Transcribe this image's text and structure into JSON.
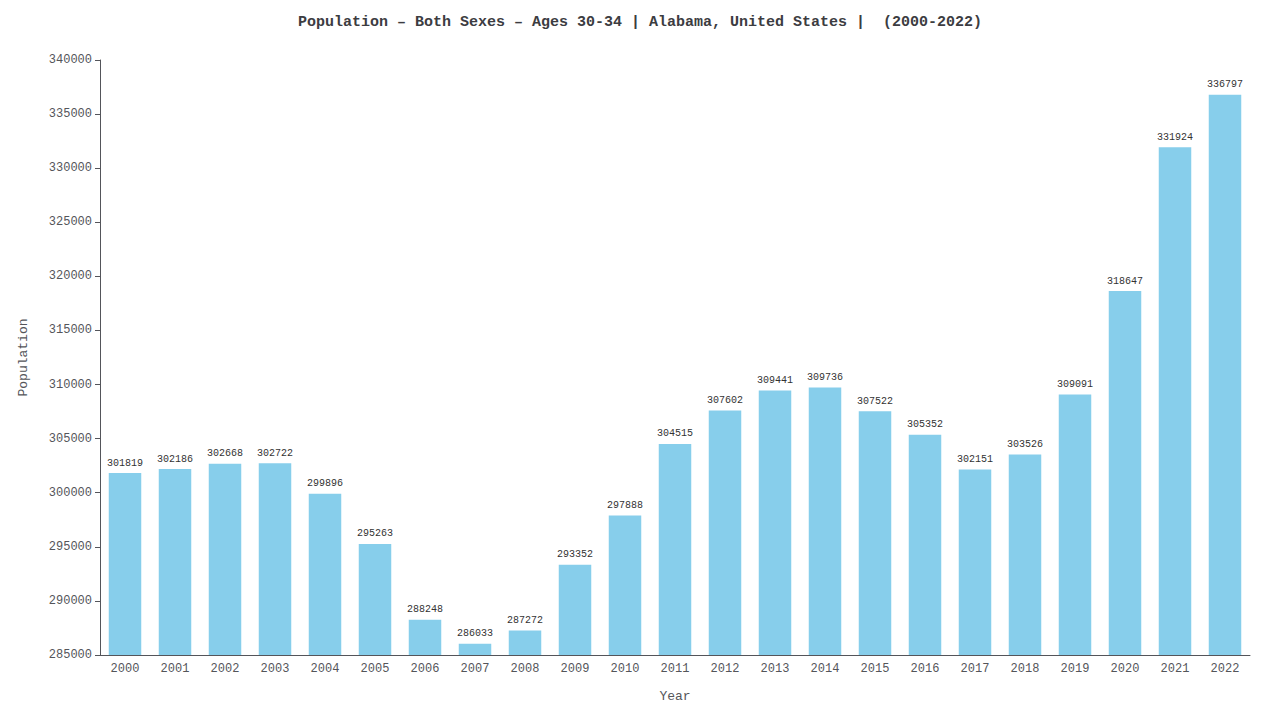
{
  "chart_data": {
    "type": "bar",
    "title": "Population – Both Sexes – Ages 30-34 | Alabama, United States |  (2000-2022)",
    "xlabel": "Year",
    "ylabel": "Population",
    "categories": [
      2000,
      2001,
      2002,
      2003,
      2004,
      2005,
      2006,
      2007,
      2008,
      2009,
      2010,
      2011,
      2012,
      2013,
      2014,
      2015,
      2016,
      2017,
      2018,
      2019,
      2020,
      2021,
      2022
    ],
    "values": [
      301819,
      302186,
      302668,
      302722,
      299896,
      295263,
      288248,
      286033,
      287272,
      293352,
      297888,
      304515,
      307602,
      309441,
      309736,
      307522,
      305352,
      302151,
      303526,
      309091,
      318647,
      331924,
      336797
    ],
    "color": "#87CEEB",
    "ylim": [
      285000,
      340000
    ],
    "yticks": [
      285000,
      290000,
      295000,
      300000,
      305000,
      310000,
      315000,
      320000,
      325000,
      330000,
      335000,
      340000
    ],
    "grid": false,
    "data_labels": true
  }
}
